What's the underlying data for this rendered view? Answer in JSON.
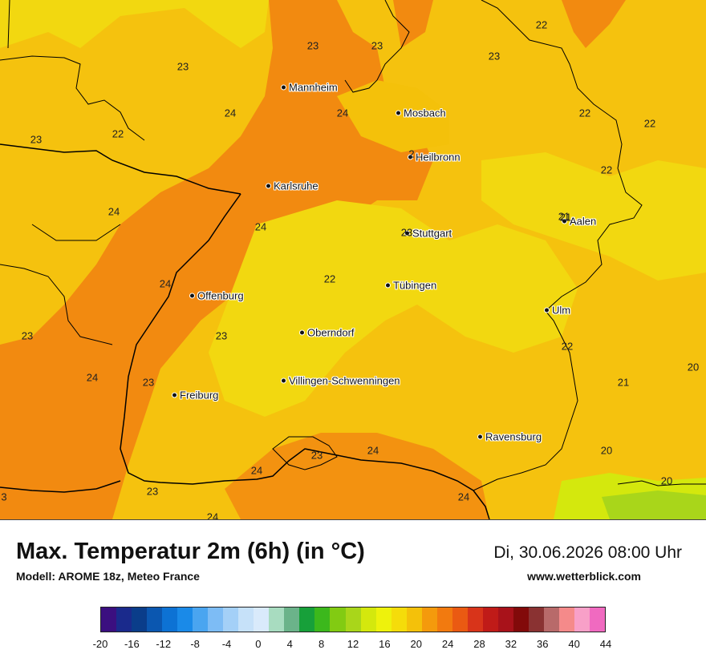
{
  "title": "Max. Temperatur 2m (6h) (in °C)",
  "subtitle": "Modell: AROME 18z, Meteo France",
  "datetime": "Di, 30.06.2026 08:00 Uhr",
  "website": "www.wetterblick.com",
  "cities": [
    {
      "id": "mannheim",
      "name": "Mannheim"
    },
    {
      "id": "mosbach",
      "name": "Mosbach"
    },
    {
      "id": "heilbronn",
      "name": "Heilbronn"
    },
    {
      "id": "karlsruhe",
      "name": "Karlsruhe"
    },
    {
      "id": "stuttgart",
      "name": "Stuttgart"
    },
    {
      "id": "aalen",
      "name": "Aalen"
    },
    {
      "id": "offenburg",
      "name": "Offenburg"
    },
    {
      "id": "tuebingen",
      "name": "Tübingen"
    },
    {
      "id": "ulm",
      "name": "Ulm"
    },
    {
      "id": "oberndorf",
      "name": "Oberndorf"
    },
    {
      "id": "villingen",
      "name": "Villingen-Schwenningen"
    },
    {
      "id": "freiburg",
      "name": "Freiburg"
    },
    {
      "id": "ravensburg",
      "name": "Ravensburg"
    }
  ],
  "values": [
    "22",
    "23",
    "23",
    "23",
    "23",
    "24",
    "24",
    "22",
    "23",
    "22",
    "22",
    "22",
    "24",
    "24",
    "24",
    "21",
    "22",
    "24",
    "23",
    "23",
    "22",
    "20",
    "21",
    "23",
    "24",
    "23",
    "24",
    "20",
    "20",
    "24",
    "23",
    "24",
    "3",
    "21",
    "23",
    "2"
  ],
  "legend": {
    "ticks": [
      "-20",
      "-16",
      "-12",
      "-8",
      "-4",
      "0",
      "4",
      "8",
      "12",
      "16",
      "20",
      "24",
      "28",
      "32",
      "36",
      "40",
      "44"
    ],
    "colors": [
      "#3b0f80",
      "#1a2a8c",
      "#0a3d8a",
      "#0b57b0",
      "#0d72d4",
      "#1a8ae8",
      "#4aa5f0",
      "#7dbcf5",
      "#a4d0f7",
      "#c6e1f9",
      "#d9eafb",
      "#a8dcc0",
      "#6bb38a",
      "#17a03a",
      "#3cb81c",
      "#82cb12",
      "#a9d61a",
      "#d4e80d",
      "#eef20c",
      "#f5dc0a",
      "#f4c10a",
      "#f49a0c",
      "#f27a0f",
      "#ea5a12",
      "#d8341a",
      "#c01b18",
      "#a8121a",
      "#820a0a",
      "#8a3232",
      "#b86a6a",
      "#f58a8a",
      "#f8a0c8",
      "#f06ac0"
    ]
  }
}
